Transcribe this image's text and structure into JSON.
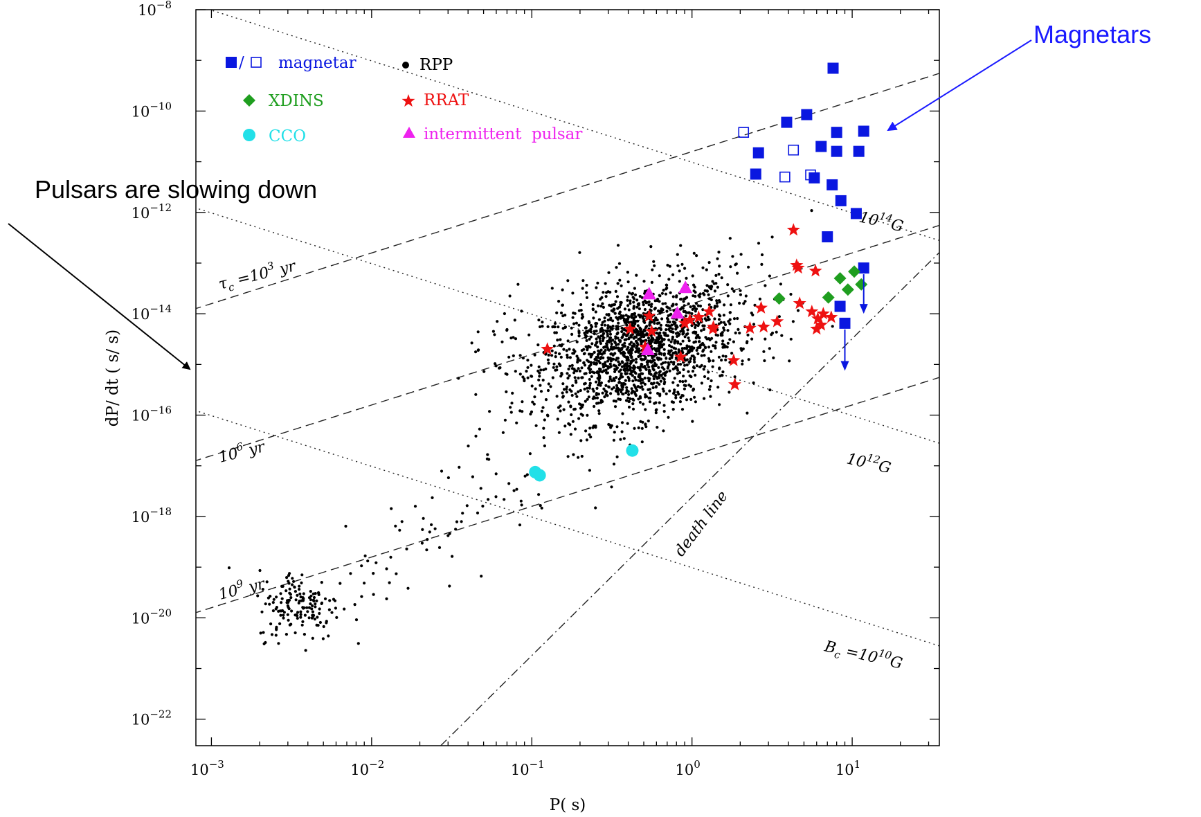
{
  "colors": {
    "magnetar": "#0a17e0",
    "rpp": "#000000",
    "xdins": "#1f9e1f",
    "rrat": "#ee1111",
    "cco": "#22e0e8",
    "intermittent": "#ee22ee",
    "annotation_blue": "#1a1aff",
    "axis": "#000000"
  },
  "chart_data": {
    "type": "scatter",
    "xlabel": "P( s)",
    "ylabel": "dP/ dt ( s/ s)",
    "xscale": "log",
    "yscale": "log",
    "xlim": [
      0.0008,
      35
    ],
    "ylim": [
      3e-23,
      1e-08
    ],
    "xticks": [
      {
        "value": 0.001,
        "base": "10",
        "exp": "−3"
      },
      {
        "value": 0.01,
        "base": "10",
        "exp": "−2"
      },
      {
        "value": 0.1,
        "base": "10",
        "exp": "−1"
      },
      {
        "value": 1,
        "base": "10",
        "exp": "0"
      },
      {
        "value": 10,
        "base": "10",
        "exp": "1"
      }
    ],
    "yticks": [
      {
        "value": 1e-08,
        "base": "10",
        "exp": "−8"
      },
      {
        "value": 1e-10,
        "base": "10",
        "exp": "−10"
      },
      {
        "value": 1e-12,
        "base": "10",
        "exp": "−12"
      },
      {
        "value": 1e-14,
        "base": "10",
        "exp": "−14"
      },
      {
        "value": 1e-16,
        "base": "10",
        "exp": "−16"
      },
      {
        "value": 1e-18,
        "base": "10",
        "exp": "−18"
      },
      {
        "value": 1e-20,
        "base": "10",
        "exp": "−20"
      },
      {
        "value": 1e-22,
        "base": "10",
        "exp": "−22"
      }
    ],
    "legend": {
      "placement": "top-left",
      "entries": [
        {
          "key": "magnetar",
          "label": "magnetar",
          "marker_note": "■/□"
        },
        {
          "key": "rpp",
          "label": "RPP"
        },
        {
          "key": "xdins",
          "label": "XDINS"
        },
        {
          "key": "rrat",
          "label": "RRAT"
        },
        {
          "key": "cco",
          "label": "CCO"
        },
        {
          "key": "intermittent",
          "label": "intermittent  pulsar"
        }
      ]
    },
    "reference_lines": {
      "age": [
        {
          "label_main": "τ",
          "label_sub": "c",
          "label_rest": " =10",
          "label_sup": "3",
          "label_tail": " yr",
          "tau_yr": 1000
        },
        {
          "label_main": "10",
          "label_sup": "6",
          "label_tail": " yr",
          "tau_yr": 1000000
        },
        {
          "label_main": "10",
          "label_sup": "9",
          "label_tail": " yr",
          "tau_yr": 1000000000
        }
      ],
      "field": [
        {
          "label_main": "10",
          "label_sup": "14",
          "label_tail": "G",
          "B_gauss": 100000000000000.0
        },
        {
          "label_main": "10",
          "label_sup": "12",
          "label_tail": "G",
          "B_gauss": 1000000000000.0
        },
        {
          "label_main": "B",
          "label_sub": "c",
          "label_rest": " =10",
          "label_sup": "10",
          "label_tail": "G",
          "B_gauss": 10000000000.0
        }
      ],
      "death_line": {
        "label": "death  line",
        "p1": [
          0.027,
          3e-23
        ],
        "p2": [
          30,
          1e-13
        ]
      }
    },
    "series": [
      {
        "key": "magnetar_filled",
        "points": [
          [
            7.6,
            7e-10
          ],
          [
            5.2,
            8.5e-11
          ],
          [
            3.9,
            6e-11
          ],
          [
            11.8,
            4e-11
          ],
          [
            8.0,
            3.8e-11
          ],
          [
            6.4,
            2e-11
          ],
          [
            8.0,
            1.6e-11
          ],
          [
            11.0,
            1.6e-11
          ],
          [
            2.6,
            1.5e-11
          ],
          [
            2.5,
            5.7e-12
          ],
          [
            5.8,
            4.8e-12
          ],
          [
            7.5,
            3.5e-12
          ],
          [
            8.5,
            1.7e-12
          ],
          [
            10.6,
            9.5e-13
          ],
          [
            7.0,
            3.3e-13
          ],
          [
            11.8,
            8e-14
          ],
          [
            8.4,
            1.4e-14
          ],
          [
            9.0,
            6.5e-15
          ]
        ]
      },
      {
        "key": "magnetar_open",
        "points": [
          [
            2.1,
            3.8e-11
          ],
          [
            4.3,
            1.7e-11
          ],
          [
            3.8,
            5e-12
          ],
          [
            5.5,
            5.5e-12
          ]
        ]
      },
      {
        "key": "xdins",
        "points": [
          [
            10.3,
            6.8e-14
          ],
          [
            8.4,
            5e-14
          ],
          [
            11.4,
            3.8e-14
          ],
          [
            9.4,
            3e-14
          ],
          [
            3.5,
            2e-14
          ],
          [
            7.1,
            2.1e-14
          ]
        ]
      },
      {
        "key": "cco",
        "points": [
          [
            0.424,
            2e-17
          ],
          [
            0.105,
            7.5e-18
          ],
          [
            0.112,
            6.5e-18
          ]
        ]
      },
      {
        "key": "rrat",
        "points": [
          [
            4.3,
            4.5e-13
          ],
          [
            4.5,
            9e-14
          ],
          [
            4.6,
            8e-14
          ],
          [
            5.9,
            7e-14
          ],
          [
            0.125,
            2e-15
          ],
          [
            0.54,
            9e-15
          ],
          [
            0.41,
            5e-15
          ],
          [
            0.56,
            4.5e-15
          ],
          [
            0.85,
            1.4e-15
          ],
          [
            0.9,
            6.5e-15
          ],
          [
            0.97,
            7.5e-15
          ],
          [
            1.1,
            8.5e-15
          ],
          [
            1.35,
            5e-15
          ],
          [
            1.36,
            5.5e-15
          ],
          [
            1.28,
            1.1e-14
          ],
          [
            1.82,
            1.2e-15
          ],
          [
            1.85,
            4e-16
          ],
          [
            2.3,
            5.2e-15
          ],
          [
            2.7,
            1.3e-14
          ],
          [
            2.8,
            5.5e-15
          ],
          [
            3.4,
            7e-15
          ],
          [
            4.7,
            1.6e-14
          ],
          [
            5.6,
            1.1e-14
          ],
          [
            6.0,
            5e-15
          ],
          [
            6.1,
            8e-15
          ],
          [
            6.6,
            1e-14
          ],
          [
            7.4,
            8.5e-15
          ],
          [
            6.4,
            6e-15
          ],
          [
            0.51,
            2.2e-15
          ]
        ]
      },
      {
        "key": "intermittent",
        "points": [
          [
            0.54,
            2.4e-14
          ],
          [
            0.91,
            3.2e-14
          ],
          [
            0.81,
            1e-14
          ],
          [
            0.53,
            1.9e-15
          ]
        ]
      }
    ],
    "upper_limit_arrows": [
      {
        "x": 11.8,
        "from": 8e-14,
        "to": 1e-14
      },
      {
        "x": 9.0,
        "from": 6.5e-15,
        "to": 7.5e-16
      }
    ],
    "rpp_note": "dense cloud of radio pulsars centred near P≈0.5 s, dP/dt≈1e-15; millisecond pulsars near P≈3 ms, dP/dt≈1e-20"
  },
  "annotations": {
    "magnetars": "Magnetars",
    "slowing": "Pulsars are slowing down"
  }
}
